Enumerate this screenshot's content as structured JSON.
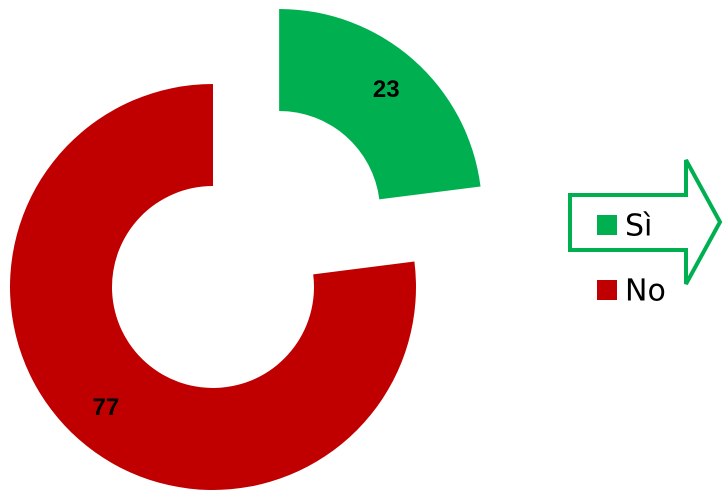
{
  "chart_data": {
    "type": "donut",
    "categories": [
      "Sì",
      "No"
    ],
    "values": [
      23,
      77
    ],
    "colors": [
      "#00b050",
      "#c00000"
    ],
    "exploded": [
      true,
      false
    ]
  }
}
